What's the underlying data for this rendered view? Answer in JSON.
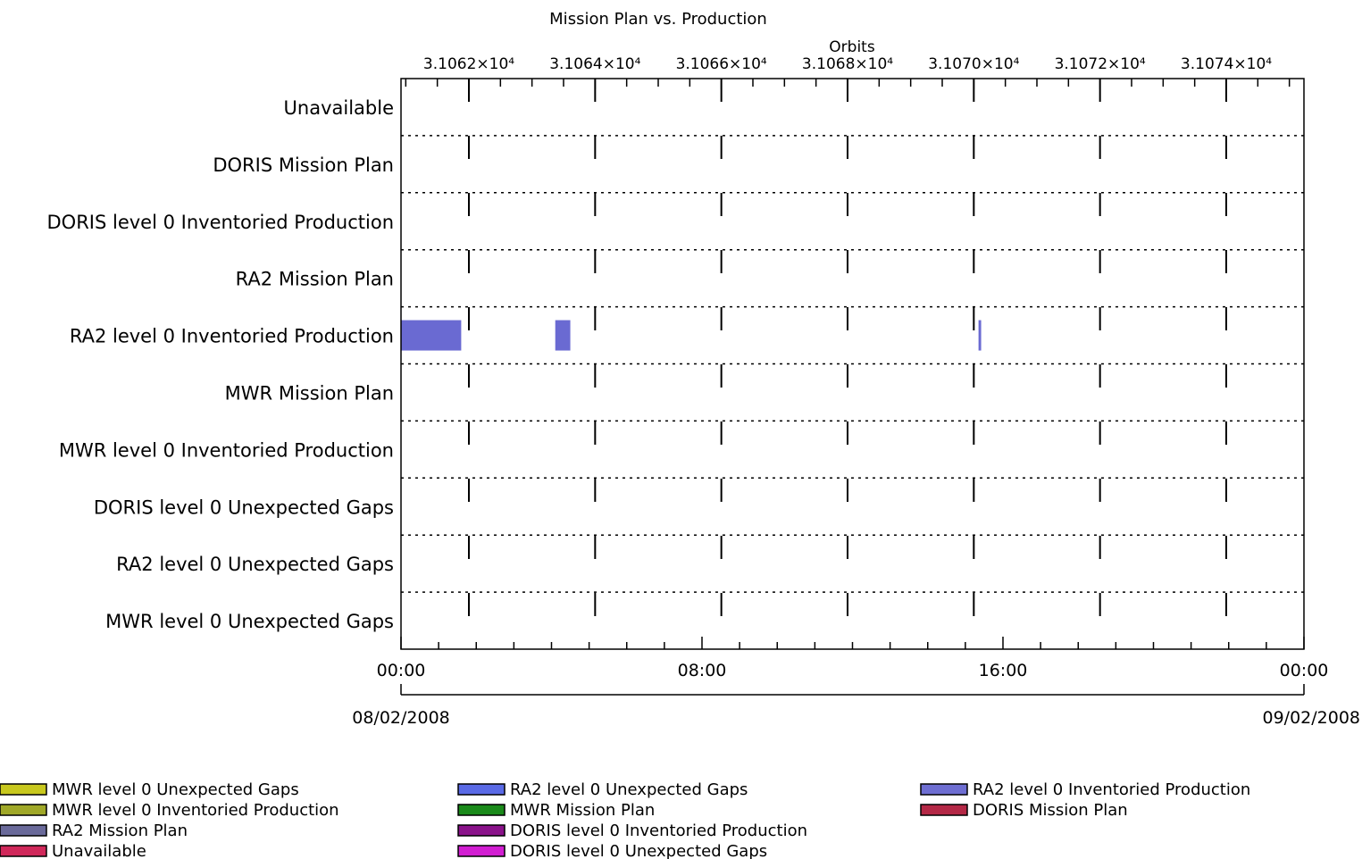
{
  "chart_data": {
    "type": "bar",
    "title": "Mission Plan vs. Production",
    "top_axis": {
      "label": "Orbits",
      "ticks": [
        {
          "value": 31062,
          "label": "3.1062×10⁴"
        },
        {
          "value": 31064,
          "label": "3.1064×10⁴"
        },
        {
          "value": 31066,
          "label": "3.1066×10⁴"
        },
        {
          "value": 31068,
          "label": "3.1068×10⁴"
        },
        {
          "value": 31070,
          "label": "3.1070×10⁴"
        },
        {
          "value": 31072,
          "label": "3.1072×10⁴"
        },
        {
          "value": 31074,
          "label": "3.1074×10⁴"
        }
      ]
    },
    "bottom_axis": {
      "ticks": [
        {
          "hour": 0,
          "label": "00:00"
        },
        {
          "hour": 8,
          "label": "08:00"
        },
        {
          "hour": 16,
          "label": "16:00"
        },
        {
          "hour": 24,
          "label": "00:00"
        }
      ],
      "dates": [
        {
          "hour": 0,
          "label": "08/02/2008"
        },
        {
          "hour": 24,
          "label": "09/02/2008"
        }
      ],
      "xlim_hours": [
        0,
        24
      ]
    },
    "categories": [
      "Unavailable",
      "DORIS Mission Plan",
      "DORIS level 0 Inventoried Production",
      "RA2 Mission Plan",
      "RA2 level 0 Inventoried Production",
      "MWR Mission Plan",
      "MWR level 0 Inventoried Production",
      "DORIS level 0 Unexpected Gaps",
      "RA2 level 0 Unexpected Gaps",
      "MWR level 0 Unexpected Gaps"
    ],
    "intervals": [
      {
        "category": "RA2 level 0 Inventoried Production",
        "start_hour": 0.0,
        "end_hour": 1.6
      },
      {
        "category": "RA2 level 0 Inventoried Production",
        "start_hour": 4.1,
        "end_hour": 4.5
      },
      {
        "category": "RA2 level 0 Inventoried Production",
        "start_hour": 15.35,
        "end_hour": 15.42
      }
    ],
    "grid": true,
    "legend": {
      "position": "bottom",
      "entries": [
        {
          "label": "MWR level 0 Unexpected Gaps",
          "color": "#c8c81e"
        },
        {
          "label": "MWR level 0 Inventoried Production",
          "color": "#a0a828"
        },
        {
          "label": "RA2 Mission Plan",
          "color": "#6a6a9a"
        },
        {
          "label": "Unavailable",
          "color": "#d0285a"
        },
        {
          "label": "RA2 level 0 Unexpected Gaps",
          "color": "#5a6ae6"
        },
        {
          "label": "MWR Mission Plan",
          "color": "#1a8a1a"
        },
        {
          "label": "DORIS level 0 Inventoried Production",
          "color": "#8a128a"
        },
        {
          "label": "DORIS level 0 Unexpected Gaps",
          "color": "#d21ed2"
        },
        {
          "label": "RA2 level 0 Inventoried Production",
          "color": "#6e6ed2"
        },
        {
          "label": "DORIS Mission Plan",
          "color": "#b42846"
        }
      ]
    }
  }
}
